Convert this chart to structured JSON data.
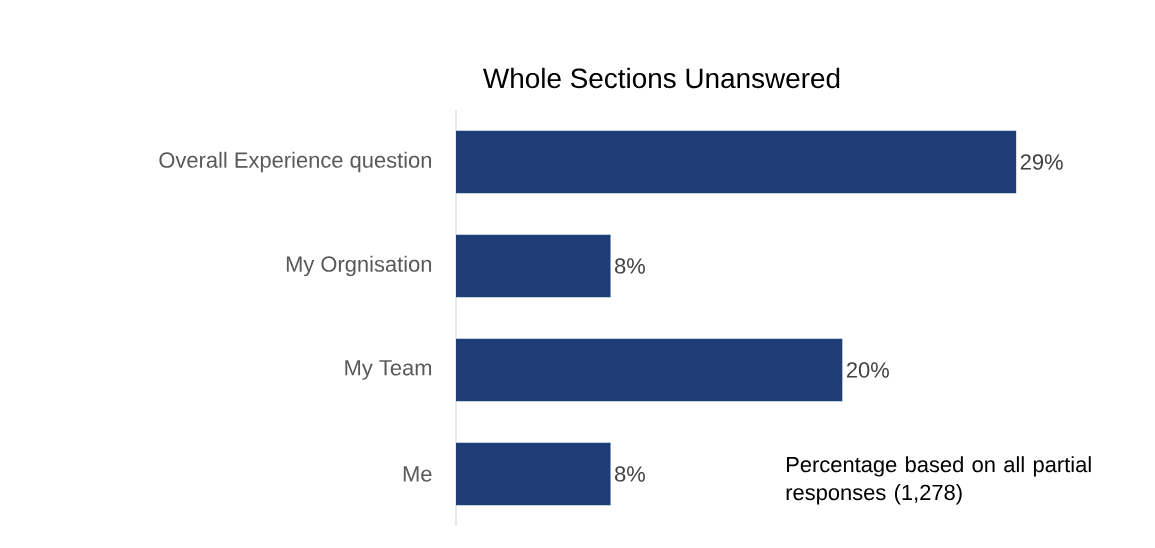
{
  "chart_data": {
    "type": "bar",
    "orientation": "horizontal",
    "title": "Whole Sections Unanswered",
    "categories": [
      "Overall Experience question",
      "My Orgnisation",
      "My Team",
      "Me"
    ],
    "values": [
      29,
      8,
      20,
      8
    ],
    "value_labels": [
      "29%",
      "8%",
      "20%",
      "8%"
    ],
    "color": "#1f3e78",
    "annotations": [
      "Percentage based on all partial responses (1,278)"
    ]
  }
}
